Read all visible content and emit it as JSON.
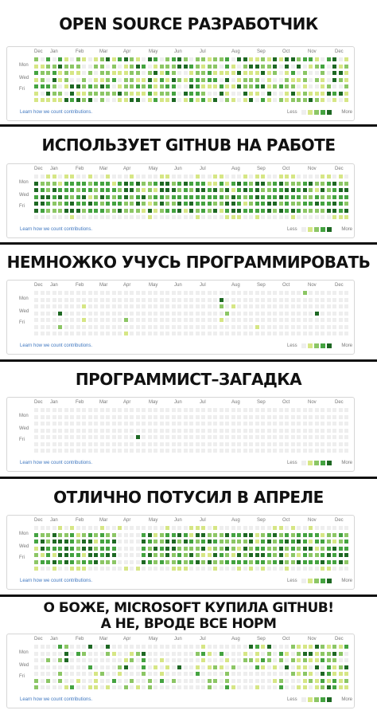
{
  "palette": [
    "#eeeeee",
    "#d6e685",
    "#8cc665",
    "#44a340",
    "#1e6823"
  ],
  "months": [
    "Dec",
    "Jan",
    "Feb",
    "Mar",
    "Apr",
    "May",
    "Jun",
    "Jul",
    "Aug",
    "Sep",
    "Oct",
    "Nov",
    "Dec"
  ],
  "days": [
    "Mon",
    "Wed",
    "Fri"
  ],
  "learn_link": "Learn how we count contributions.",
  "legend": {
    "less": "Less",
    "more": "More"
  },
  "panels": [
    {
      "title": "OPEN SOURCE РАЗРАБОТЧИК",
      "pattern": "heavy_random"
    },
    {
      "title": "ИСПОЛЬЗУЕТ GITHUB НА РАБОТЕ",
      "pattern": "weekdays"
    },
    {
      "title": "НЕМНОЖКО УЧУСЬ ПРОГРАММИРОВАТЬ",
      "pattern": "sparse"
    },
    {
      "title": "ПРОГРАММИСТ–ЗАГАДКА",
      "pattern": "single"
    },
    {
      "title": "ОТЛИЧНО ПОТУСИЛ В АПРЕЛЕ",
      "pattern": "april_gap"
    },
    {
      "title_line1": "О БОЖЕ, MICROSOFT КУПИЛА GITHUB!",
      "title_line2": "А НЕ, ВРОДЕ ВСЕ НОРМ",
      "pattern": "ms_burst"
    }
  ]
}
